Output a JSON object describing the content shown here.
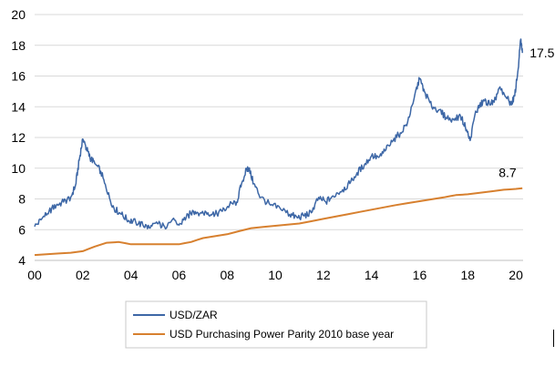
{
  "chart_data": {
    "type": "line",
    "title": "",
    "xlabel": "",
    "ylabel": "",
    "x_tick_labels": [
      "00",
      "02",
      "04",
      "06",
      "08",
      "10",
      "12",
      "14",
      "16",
      "18",
      "20"
    ],
    "y_tick_labels": [
      "4",
      "6",
      "8",
      "10",
      "12",
      "14",
      "16",
      "18",
      "20"
    ],
    "xlim": [
      2000,
      2020.3
    ],
    "ylim": [
      4,
      20
    ],
    "grid": "horizontal",
    "legend_position": "bottom",
    "series": [
      {
        "name": "USD/ZAR",
        "color": "#3d67a6",
        "x": [
          2000.0,
          2000.3,
          2000.6,
          2000.9,
          2001.2,
          2001.5,
          2001.7,
          2001.85,
          2002.0,
          2002.15,
          2002.3,
          2002.5,
          2002.75,
          2003.0,
          2003.3,
          2003.6,
          2003.9,
          2004.2,
          2004.5,
          2004.8,
          2005.1,
          2005.4,
          2005.7,
          2006.0,
          2006.3,
          2006.6,
          2006.9,
          2007.2,
          2007.5,
          2007.8,
          2008.1,
          2008.4,
          2008.6,
          2008.8,
          2008.9,
          2009.1,
          2009.4,
          2009.8,
          2010.2,
          2010.6,
          2010.9,
          2011.2,
          2011.5,
          2011.8,
          2012.1,
          2012.4,
          2012.8,
          2013.1,
          2013.4,
          2013.7,
          2014.0,
          2014.3,
          2014.6,
          2014.9,
          2015.2,
          2015.5,
          2015.8,
          2016.0,
          2016.2,
          2016.5,
          2016.8,
          2017.1,
          2017.4,
          2017.7,
          2017.9,
          2018.1,
          2018.3,
          2018.5,
          2018.7,
          2018.9,
          2019.1,
          2019.3,
          2019.6,
          2019.8,
          2019.95,
          2020.1,
          2020.2,
          2020.27
        ],
        "values": [
          6.2,
          6.7,
          7.2,
          7.6,
          7.8,
          8.1,
          8.9,
          10.5,
          11.9,
          11.3,
          10.7,
          10.3,
          9.8,
          8.5,
          7.4,
          7.0,
          6.6,
          6.5,
          6.3,
          6.1,
          6.4,
          6.2,
          6.6,
          6.3,
          6.8,
          7.2,
          7.1,
          7.1,
          7.0,
          7.2,
          7.6,
          7.8,
          9.0,
          9.9,
          10.0,
          9.0,
          8.1,
          7.6,
          7.4,
          7.0,
          6.8,
          6.9,
          7.1,
          8.1,
          7.8,
          8.2,
          8.6,
          9.0,
          9.7,
          10.2,
          10.8,
          10.7,
          11.2,
          11.8,
          12.3,
          13.0,
          14.8,
          15.8,
          15.0,
          14.0,
          13.8,
          13.3,
          13.2,
          13.4,
          12.7,
          11.8,
          13.5,
          14.1,
          14.4,
          14.2,
          14.3,
          15.2,
          14.6,
          14.2,
          14.7,
          16.5,
          18.4,
          17.5
        ]
      },
      {
        "name": "USD Purchasing Power Parity 2010 base year",
        "color": "#d7802f",
        "x": [
          2000.0,
          2001.0,
          2001.5,
          2002.0,
          2002.5,
          2003.0,
          2003.5,
          2004.0,
          2005.0,
          2006.0,
          2006.5,
          2007.0,
          2008.0,
          2009.0,
          2010.0,
          2011.0,
          2012.0,
          2013.0,
          2014.0,
          2015.0,
          2016.0,
          2017.0,
          2017.5,
          2018.0,
          2019.0,
          2019.5,
          2020.0,
          2020.27
        ],
        "values": [
          4.35,
          4.45,
          4.5,
          4.6,
          4.9,
          5.15,
          5.2,
          5.05,
          5.05,
          5.05,
          5.2,
          5.45,
          5.7,
          6.1,
          6.25,
          6.4,
          6.7,
          7.0,
          7.3,
          7.6,
          7.85,
          8.1,
          8.25,
          8.3,
          8.5,
          8.6,
          8.65,
          8.7
        ]
      }
    ],
    "annotations": [
      {
        "text": "17.5",
        "x": 2020.27,
        "y": 17.5
      },
      {
        "text": "8.7",
        "x": 2020.27,
        "y": 8.7
      }
    ]
  }
}
